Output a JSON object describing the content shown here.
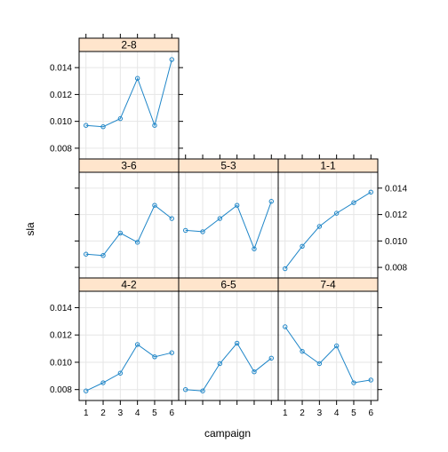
{
  "chart_data": {
    "type": "line",
    "xlabel": "campaign",
    "ylabel": "sla",
    "x_ticks": [
      "1",
      "2",
      "3",
      "4",
      "5",
      "6"
    ],
    "y_ticks": [
      "0.008",
      "0.010",
      "0.012",
      "0.014"
    ],
    "ylim": [
      0.0072,
      0.0152
    ],
    "xlim": [
      0.6,
      6.4
    ],
    "grid": true,
    "colors": {
      "line": "#1f86c8",
      "strip": "#ffe5cc",
      "grid": "#e6e6e6",
      "frame": "#000000"
    },
    "panels": [
      {
        "label": "2-8",
        "x": [
          1,
          2,
          3,
          4,
          5,
          6
        ],
        "y": [
          0.0097,
          0.0096,
          0.0102,
          0.0132,
          0.0097,
          0.0146
        ]
      },
      {
        "label": "3-6",
        "x": [
          1,
          2,
          3,
          4,
          5,
          6
        ],
        "y": [
          0.009,
          0.0089,
          0.0106,
          0.0099,
          0.0127,
          0.0117
        ]
      },
      {
        "label": "5-3",
        "x": [
          1,
          2,
          3,
          4,
          5,
          6
        ],
        "y": [
          0.0108,
          0.0107,
          0.0117,
          0.0127,
          0.0094,
          0.013
        ]
      },
      {
        "label": "1-1",
        "x": [
          1,
          2,
          3,
          4,
          5,
          6
        ],
        "y": [
          0.0079,
          0.0096,
          0.0111,
          0.0121,
          0.0129,
          0.0137
        ]
      },
      {
        "label": "4-2",
        "x": [
          1,
          2,
          3,
          4,
          5,
          6
        ],
        "y": [
          0.0079,
          0.0085,
          0.0092,
          0.0113,
          0.0104,
          0.0107
        ]
      },
      {
        "label": "6-5",
        "x": [
          1,
          2,
          3,
          4,
          5,
          6
        ],
        "y": [
          0.008,
          0.0079,
          0.0099,
          0.0114,
          0.0093,
          0.0103
        ]
      },
      {
        "label": "7-4",
        "x": [
          1,
          2,
          3,
          4,
          5,
          6
        ],
        "y": [
          0.0126,
          0.0108,
          0.0099,
          0.0112,
          0.0085,
          0.0087
        ]
      }
    ]
  }
}
